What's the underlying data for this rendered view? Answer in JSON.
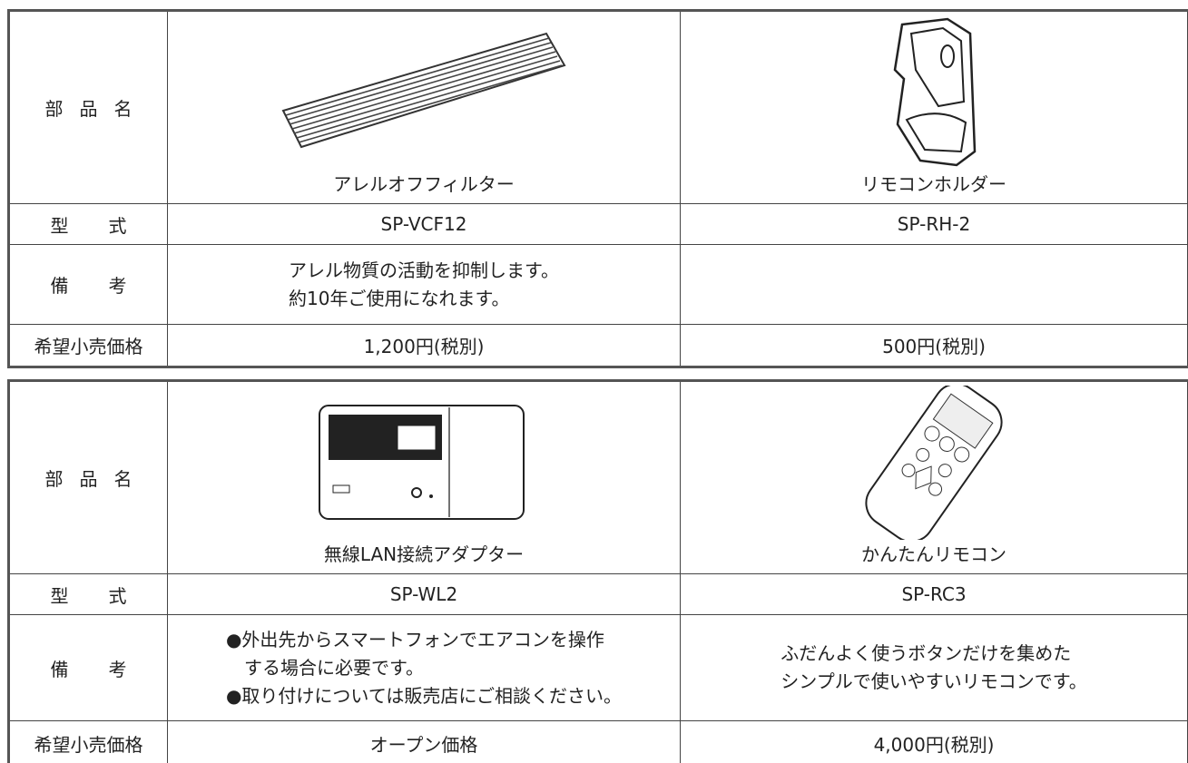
{
  "tables": [
    {
      "rows": [
        [
          "部品名",
          "アレルオフフィルター",
          "リモコンホルダー"
        ],
        [
          "型式",
          "SP-VCF12",
          "SP-RH-2"
        ],
        [
          "備考",
          [
            "アレル物質の活動を抑制します。",
            "約10年ご使用になれます。"
          ],
          null
        ],
        [
          "希望小売価格",
          "1,200円(税別)",
          "500円(税別)"
        ]
      ]
    },
    {
      "rows": [
        [
          "部品名",
          "無線LAN接続アダプター",
          "かんたんリモコン"
        ],
        [
          "型式",
          "SP-WL2",
          "SP-RC3"
        ],
        [
          "備考",
          [
            "●外出先からスマートフォンでエアコンを操作",
            "　する場合に必要です。",
            "●取り付けについては販売店にご相談ください。"
          ],
          [
            "ふだんよく使うボタンだけを集めた",
            "シンプルで使いやすいリモコンです。"
          ]
        ],
        [
          "希望小売価格",
          "オープン価格",
          "4,000円(税別)"
        ]
      ]
    }
  ]
}
